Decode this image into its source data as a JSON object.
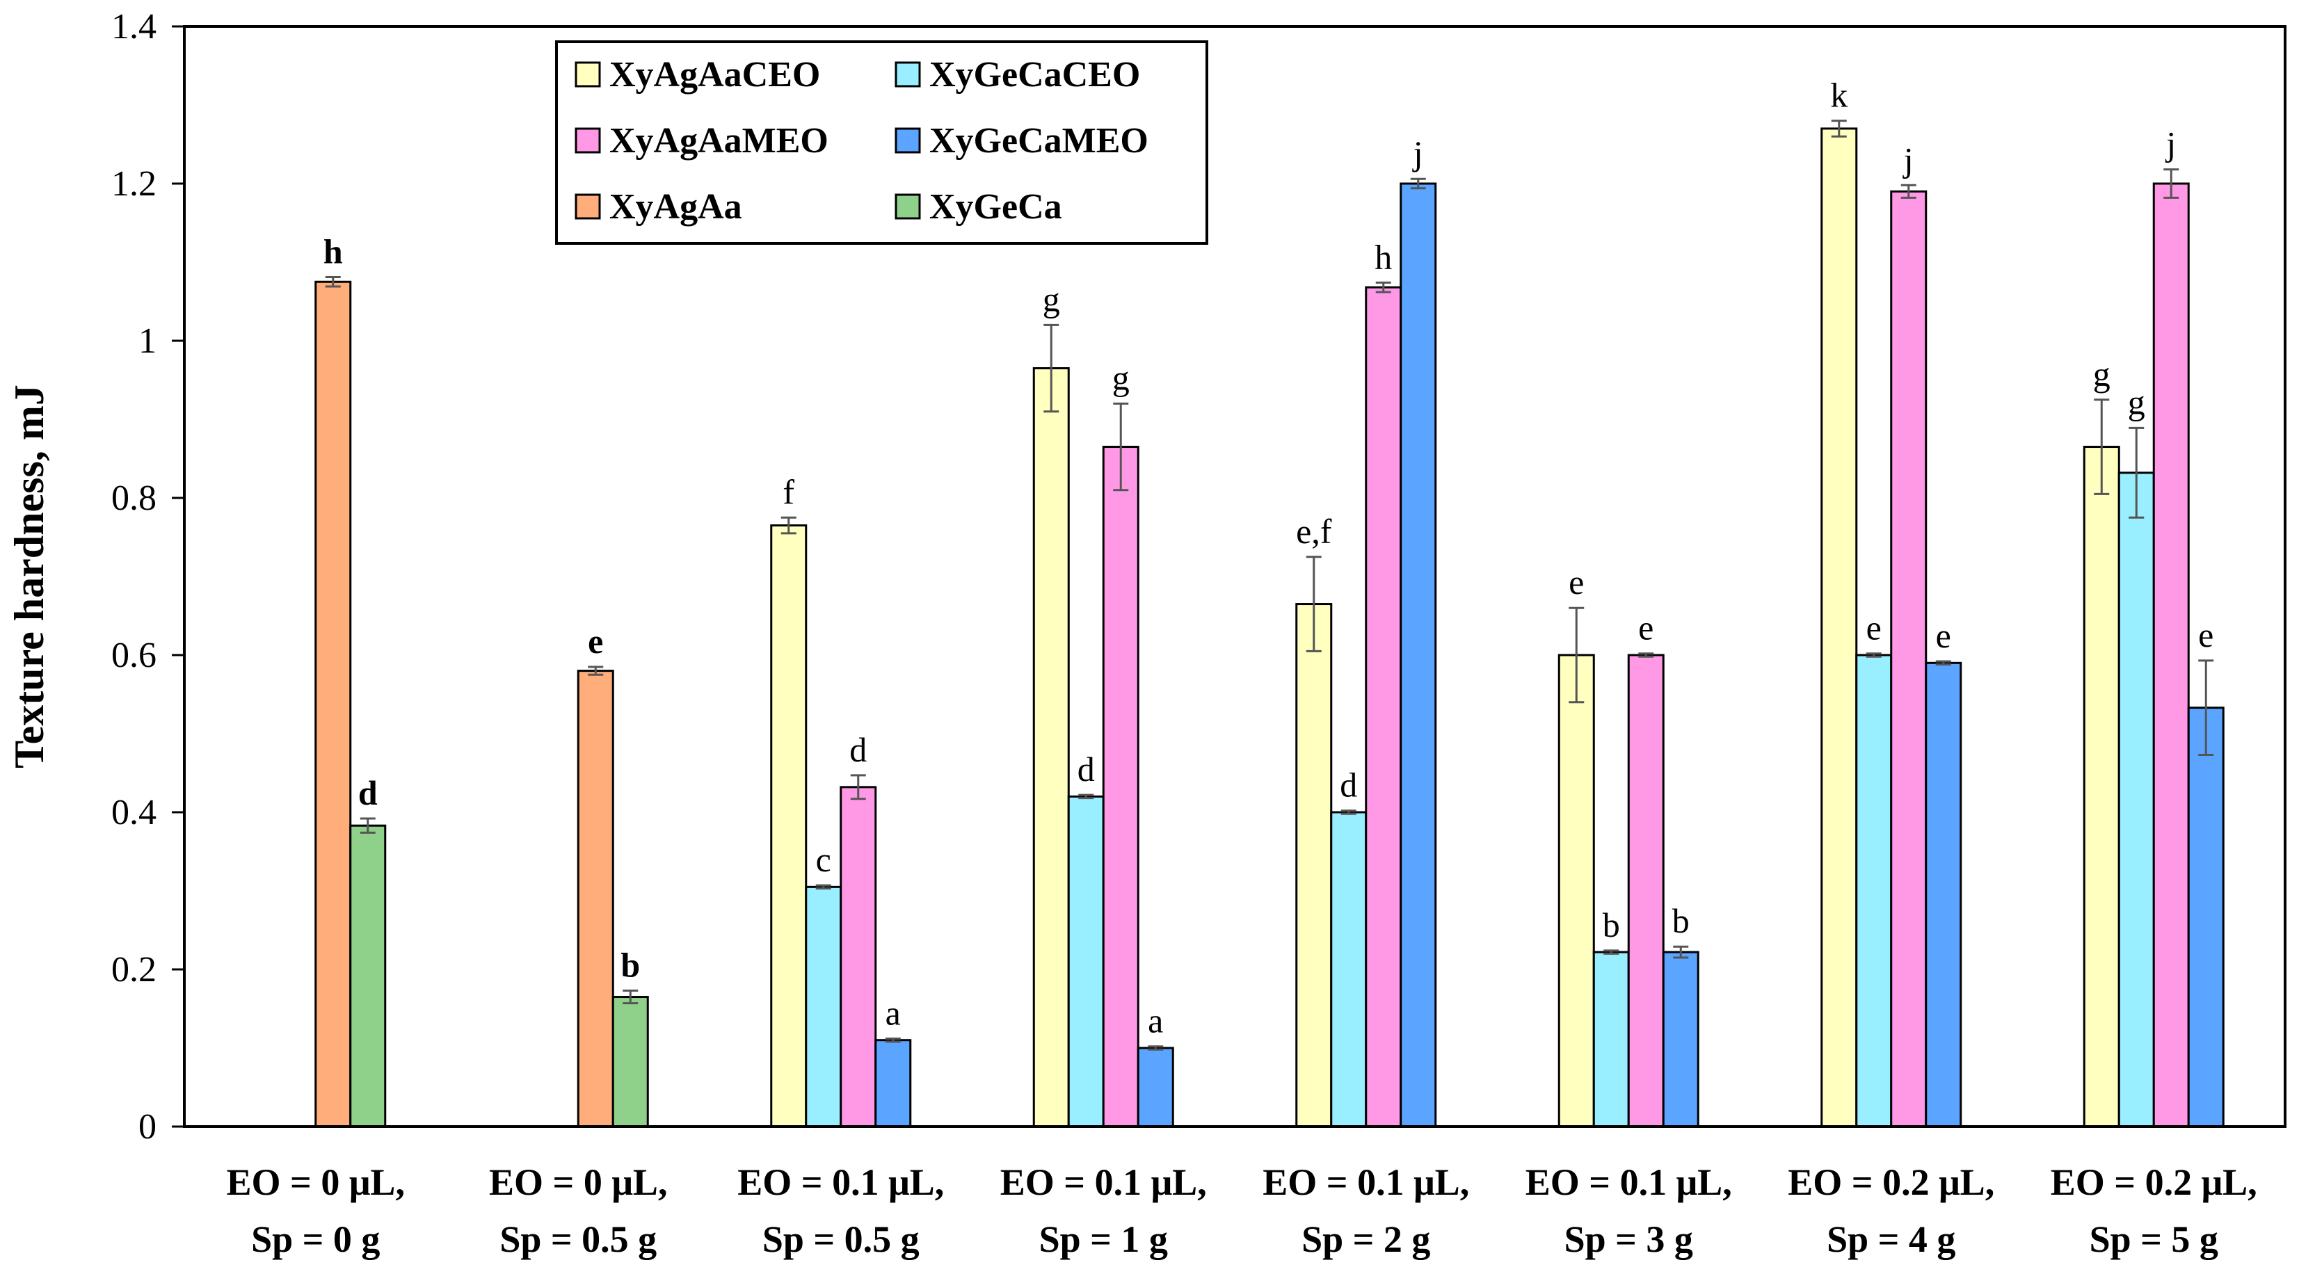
{
  "chart_data": {
    "type": "bar",
    "title": "",
    "xlabel": "",
    "ylabel": "Texture hardness, mJ",
    "ylim": [
      0,
      1.4
    ],
    "yticks": [
      "0",
      "0.2",
      "0.4",
      "0.6",
      "0.8",
      "1",
      "1.2",
      "1.4"
    ],
    "grid": false,
    "legend_position": "top-left",
    "categories": [
      {
        "line1": "EO = 0  μL,",
        "line2": "Sp = 0 g"
      },
      {
        "line1": "EO = 0 μL,",
        "line2": "Sp = 0.5 g"
      },
      {
        "line1": "EO = 0.1  μL,",
        "line2": "Sp = 0.5 g"
      },
      {
        "line1": "EO = 0.1 μL,",
        "line2": "Sp = 1 g"
      },
      {
        "line1": "EO = 0.1 μL,",
        "line2": "Sp = 2 g"
      },
      {
        "line1": "EO = 0.1 μL,",
        "line2": "Sp = 3 g"
      },
      {
        "line1": "EO = 0.2 μL,",
        "line2": "Sp = 4 g"
      },
      {
        "line1": "EO = 0.2 μL,",
        "line2": "Sp = 5 g"
      }
    ],
    "series": [
      {
        "name": "XyAgAaCEO",
        "color": "#FFFFC0",
        "values": [
          null,
          null,
          0.765,
          0.965,
          0.665,
          0.6,
          1.27,
          0.865
        ],
        "errors": [
          null,
          null,
          0.01,
          0.055,
          0.06,
          0.06,
          0.01,
          0.06
        ],
        "labels": [
          null,
          null,
          "f",
          "g",
          "e,f",
          "e",
          "k",
          "g"
        ]
      },
      {
        "name": "XyGeCaCEO",
        "color": "#99EEFF",
        "values": [
          null,
          null,
          0.305,
          0.42,
          0.4,
          0.222,
          0.6,
          0.832
        ],
        "errors": [
          null,
          null,
          0.002,
          0.002,
          0.002,
          0.002,
          0.002,
          0.057
        ],
        "labels": [
          null,
          null,
          "c",
          "d",
          "d",
          "b",
          "e",
          "g"
        ]
      },
      {
        "name": "XyAgAaMEO",
        "color": "#FF99E6",
        "values": [
          null,
          null,
          0.432,
          0.865,
          1.068,
          0.6,
          1.19,
          1.2
        ],
        "errors": [
          null,
          null,
          0.015,
          0.055,
          0.006,
          0.002,
          0.008,
          0.018
        ],
        "labels": [
          null,
          null,
          "d",
          "g",
          "h",
          "e",
          "j",
          "j"
        ]
      },
      {
        "name": "XyGeCaMEO",
        "color": "#5BA4FF",
        "values": [
          null,
          null,
          0.11,
          0.1,
          1.2,
          0.222,
          0.59,
          0.533
        ],
        "errors": [
          null,
          null,
          0.002,
          0.002,
          0.006,
          0.007,
          0.002,
          0.06
        ],
        "labels": [
          null,
          null,
          "a",
          "a",
          "j",
          "b",
          "e",
          "e"
        ]
      },
      {
        "name": "XyAgAa",
        "color": "#FFAD7A",
        "values": [
          1.075,
          0.58,
          null,
          null,
          null,
          null,
          null,
          null
        ],
        "errors": [
          0.006,
          0.005,
          null,
          null,
          null,
          null,
          null,
          null
        ],
        "labels": [
          "h",
          "e",
          null,
          null,
          null,
          null,
          null,
          null
        ]
      },
      {
        "name": "XyGeCa",
        "color": "#8FD18A",
        "values": [
          0.383,
          0.165,
          null,
          null,
          null,
          null,
          null,
          null
        ],
        "errors": [
          0.009,
          0.008,
          null,
          null,
          null,
          null,
          null,
          null
        ],
        "labels": [
          "d",
          "b",
          null,
          null,
          null,
          null,
          null,
          null
        ]
      }
    ],
    "legend": [
      [
        "XyAgAaCEO",
        "XyGeCaCEO"
      ],
      [
        "XyAgAaMEO",
        "XyGeCaMEO"
      ],
      [
        "XyAgAa",
        "XyGeCa"
      ]
    ]
  }
}
